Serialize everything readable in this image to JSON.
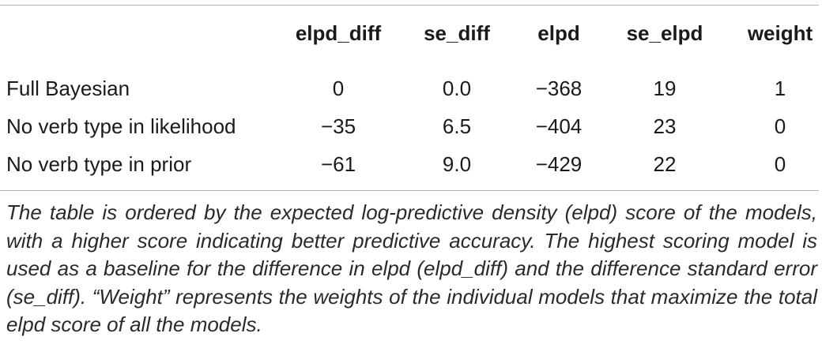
{
  "table": {
    "headers": [
      "elpd_diff",
      "se_diff",
      "elpd",
      "se_elpd",
      "weight"
    ],
    "rows": [
      {
        "model": "Full Bayesian",
        "elpd_diff": "0",
        "se_diff": "0.0",
        "elpd": "−368",
        "se_elpd": "19",
        "weight": "1"
      },
      {
        "model": "No verb type in likelihood",
        "elpd_diff": "−35",
        "se_diff": "6.5",
        "elpd": "−404",
        "se_elpd": "23",
        "weight": "0"
      },
      {
        "model": "No verb type in prior",
        "elpd_diff": "−61",
        "se_diff": "9.0",
        "elpd": "−429",
        "se_elpd": "22",
        "weight": "0"
      }
    ],
    "footnote": "The table is ordered by the expected log-predictive density (elpd) score of the models, with a higher score indicating better predictive accuracy. The highest scoring model is used as a baseline for the difference in elpd (elpd_diff) and the difference standard error (se_diff). “Weight” represents the weights of the individual models that maximize the total elpd score of all the models."
  }
}
